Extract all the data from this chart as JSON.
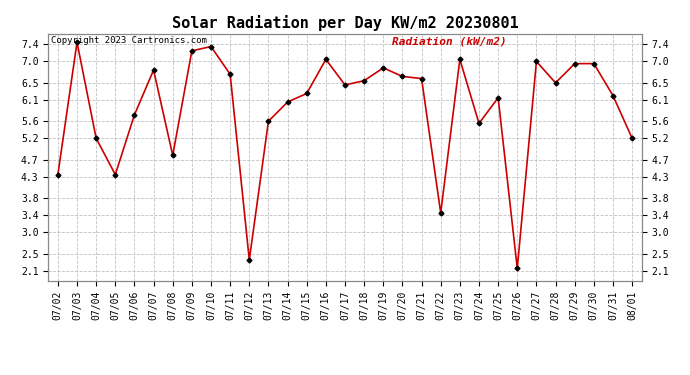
{
  "title": "Solar Radiation per Day KW/m2 20230801",
  "copyright_text": "Copyright 2023 Cartronics.com",
  "legend_label": "Radiation (kW/m2)",
  "dates": [
    "07/02",
    "07/03",
    "07/04",
    "07/05",
    "07/06",
    "07/07",
    "07/08",
    "07/09",
    "07/10",
    "07/11",
    "07/12",
    "07/13",
    "07/14",
    "07/15",
    "07/16",
    "07/17",
    "07/18",
    "07/19",
    "07/20",
    "07/21",
    "07/22",
    "07/23",
    "07/24",
    "07/25",
    "07/26",
    "07/27",
    "07/28",
    "07/29",
    "07/30",
    "07/31",
    "08/01"
  ],
  "values": [
    4.35,
    7.45,
    5.2,
    4.35,
    5.75,
    6.8,
    4.8,
    7.25,
    7.35,
    6.7,
    2.35,
    5.6,
    6.05,
    6.25,
    7.05,
    6.45,
    6.55,
    6.85,
    6.65,
    6.6,
    3.45,
    7.05,
    5.55,
    6.15,
    2.15,
    7.0,
    6.5,
    6.95,
    6.95,
    6.2,
    5.2
  ],
  "line_color": "#cc0000",
  "marker": "D",
  "marker_size": 2.5,
  "line_width": 1.2,
  "bg_color": "#ffffff",
  "grid_color": "#bbbbbb",
  "yticks": [
    2.1,
    2.5,
    3.0,
    3.4,
    3.8,
    4.3,
    4.7,
    5.2,
    5.6,
    6.1,
    6.5,
    7.0,
    7.4
  ],
  "ylim": [
    1.85,
    7.65
  ],
  "title_fontsize": 11,
  "legend_fontsize": 8,
  "tick_fontsize": 7,
  "copyright_fontsize": 6.5
}
